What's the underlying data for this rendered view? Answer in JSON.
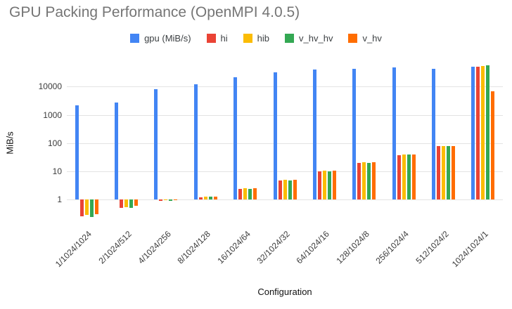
{
  "chart_data": {
    "type": "bar",
    "title": "GPU Packing Performance (OpenMPI 4.0.5)",
    "xlabel": "Configuration",
    "ylabel": "MiB/s",
    "y_scale": "log",
    "baseline": 1,
    "ylim": [
      0.13,
      90000
    ],
    "yticks": [
      1,
      10,
      100,
      1000,
      10000
    ],
    "ytick_labels": [
      "1",
      "10",
      "100",
      "1000",
      "10000"
    ],
    "grid": true,
    "legend_position": "top",
    "categories": [
      "1/1024/1024",
      "2/1024/512",
      "4/1024/256",
      "8/1024/128",
      "16/1024/64",
      "32/1024/32",
      "64/1024/16",
      "128/1024/8",
      "256/1024/4",
      "512/1024/2",
      "1024/1024/1"
    ],
    "series": [
      {
        "name": "gpu (MiB/s)",
        "color": "#4285F4",
        "values": [
          2200,
          2700,
          8000,
          12000,
          22000,
          32000,
          40000,
          44000,
          47000,
          42000,
          52000
        ]
      },
      {
        "name": "hi",
        "color": "#EA4335",
        "values": [
          0.25,
          0.5,
          0.9,
          1.2,
          2.4,
          4.8,
          10,
          20,
          38,
          78,
          52000
        ]
      },
      {
        "name": "hib",
        "color": "#FBBC04",
        "values": [
          0.28,
          0.55,
          0.95,
          1.3,
          2.5,
          5,
          10.5,
          21,
          40,
          80,
          53000
        ]
      },
      {
        "name": "v_hv_hv",
        "color": "#34A853",
        "values": [
          0.24,
          0.5,
          0.9,
          1.25,
          2.4,
          4.9,
          10,
          20,
          40,
          78,
          57000
        ]
      },
      {
        "name": "v_hv",
        "color": "#FF6D01",
        "values": [
          0.3,
          0.6,
          1.0,
          1.3,
          2.5,
          5,
          10.5,
          21,
          40,
          80,
          6800
        ]
      }
    ]
  }
}
